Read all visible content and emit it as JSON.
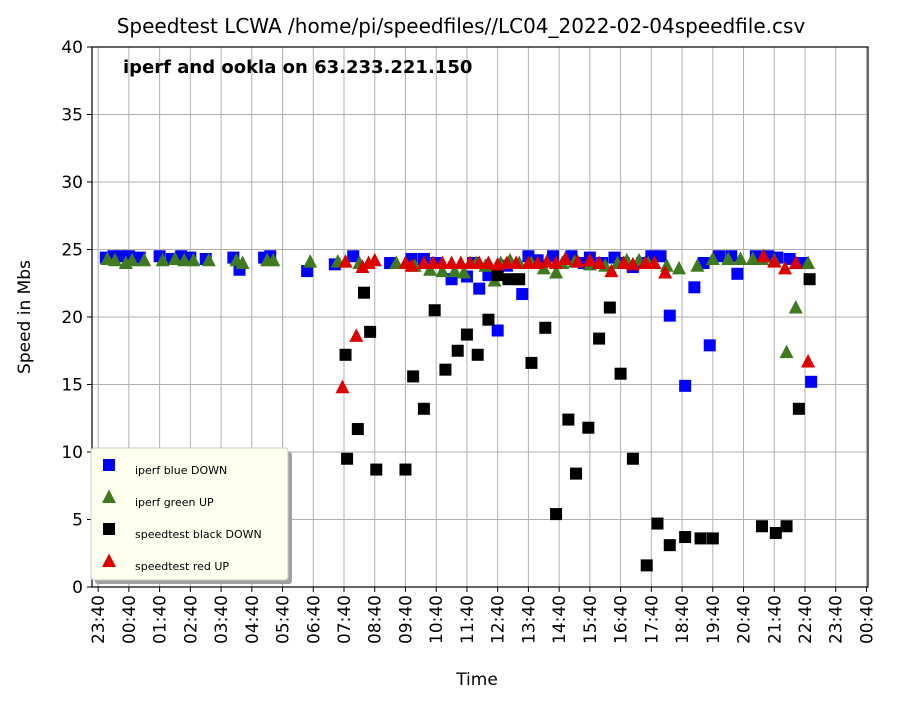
{
  "chart_data": {
    "type": "scatter",
    "title": "Speedtest LCWA /home/pi/speedfiles//LC04_2022-02-04speedfile.csv",
    "subtitle": "iperf and ookla on 63.233.221.150",
    "xlabel": "Time",
    "ylabel": "Speed in Mbs",
    "ylim": [
      0,
      40
    ],
    "yticks": [
      0,
      5,
      10,
      15,
      20,
      25,
      30,
      35,
      40
    ],
    "xlim": [
      -0.2,
      25.05
    ],
    "xtick_labels": [
      "23:40",
      "00:40",
      "01:40",
      "02:40",
      "03:40",
      "04:40",
      "05:40",
      "06:40",
      "07:40",
      "08:40",
      "09:40",
      "10:40",
      "11:40",
      "12:40",
      "13:40",
      "14:40",
      "15:40",
      "16:40",
      "17:40",
      "18:40",
      "19:40",
      "20:40",
      "21:40",
      "22:40",
      "23:40",
      "00:40"
    ],
    "grid": true,
    "legend_position": "lower-left",
    "colors": {
      "blue": "#0000ff",
      "green": "#3e7a1f",
      "black": "#000000",
      "red": "#dd0000"
    },
    "series": [
      {
        "name": "iperf blue DOWN",
        "marker": "square",
        "color": "#0000ff",
        "x": [
          0.25,
          0.5,
          0.75,
          1.0,
          1.35,
          2.0,
          2.4,
          2.7,
          3.0,
          3.5,
          4.4,
          4.6,
          5.4,
          5.6,
          6.8,
          7.7,
          8.3,
          9.5,
          10.2,
          10.6,
          11.0,
          11.5,
          12.0,
          12.2,
          12.4,
          12.7,
          13.0,
          13.3,
          13.8,
          14.0,
          14.3,
          14.8,
          15.4,
          15.8,
          16.0,
          16.4,
          16.8,
          17.1,
          17.4,
          17.7,
          18.0,
          18.3,
          18.6,
          19.1,
          19.4,
          19.7,
          19.9,
          20.2,
          20.6,
          20.8,
          21.4,
          21.8,
          22.1,
          22.5,
          22.9,
          23.2
        ],
        "y": [
          24.4,
          24.5,
          24.5,
          24.5,
          24.4,
          24.5,
          24.3,
          24.5,
          24.4,
          24.3,
          24.4,
          23.5,
          24.4,
          24.5,
          23.4,
          23.9,
          24.5,
          24.0,
          24.3,
          24.3,
          24.0,
          22.8,
          23.0,
          24.0,
          22.1,
          23.1,
          19.0,
          23.8,
          21.7,
          24.5,
          24.2,
          24.5,
          24.5,
          24.0,
          24.4,
          24.0,
          24.4,
          24.0,
          23.7,
          24.0,
          24.5,
          24.5,
          20.1,
          14.9,
          22.2,
          24.0,
          17.9,
          24.5,
          24.5,
          23.2,
          24.5,
          24.5,
          24.4,
          24.3,
          24.0,
          15.2
        ]
      },
      {
        "name": "iperf green UP",
        "marker": "triangle",
        "color": "#3e7a1f",
        "x": [
          0.3,
          0.55,
          0.9,
          1.1,
          1.5,
          2.1,
          2.5,
          2.8,
          3.1,
          3.6,
          4.5,
          4.7,
          5.5,
          5.7,
          6.9,
          7.8,
          8.5,
          9.7,
          10.3,
          10.8,
          11.2,
          11.6,
          11.9,
          12.3,
          12.6,
          12.9,
          13.1,
          13.4,
          13.7,
          14.1,
          14.5,
          14.9,
          15.1,
          15.5,
          16.0,
          16.5,
          16.9,
          17.2,
          17.6,
          17.9,
          18.5,
          18.9,
          19.5,
          20.0,
          20.5,
          20.9,
          21.3,
          21.6,
          22.0,
          22.4,
          22.7,
          23.1
        ],
        "y": [
          24.3,
          24.2,
          24.0,
          24.2,
          24.2,
          24.2,
          24.3,
          24.2,
          24.2,
          24.2,
          24.2,
          24.0,
          24.2,
          24.2,
          24.1,
          24.1,
          24.0,
          24.0,
          23.8,
          23.5,
          23.4,
          23.4,
          23.3,
          24.0,
          23.8,
          22.7,
          24.0,
          24.2,
          24.0,
          24.0,
          23.6,
          23.3,
          24.0,
          24.1,
          23.9,
          23.8,
          24.0,
          24.2,
          24.2,
          24.0,
          23.8,
          23.6,
          23.8,
          24.3,
          24.3,
          24.3,
          24.3,
          24.3,
          24.2,
          17.4,
          20.7,
          24.0
        ]
      },
      {
        "name": "speedtest black DOWN",
        "marker": "square",
        "color": "#000000",
        "x": [
          8.05,
          8.1,
          8.45,
          8.65,
          8.85,
          9.05,
          10.0,
          10.25,
          10.6,
          10.95,
          11.3,
          11.7,
          12.0,
          12.35,
          12.7,
          13.0,
          13.35,
          13.7,
          14.1,
          14.55,
          14.9,
          15.3,
          15.55,
          15.95,
          16.3,
          16.65,
          17.0,
          17.4,
          17.85,
          18.2,
          18.6,
          19.1,
          19.6,
          20.0,
          21.6,
          22.05,
          22.4,
          22.8,
          23.15
        ],
        "y": [
          17.2,
          9.5,
          11.7,
          21.8,
          18.9,
          8.7,
          8.7,
          15.6,
          13.2,
          20.5,
          16.1,
          17.5,
          18.7,
          17.2,
          19.8,
          23.1,
          22.8,
          22.8,
          16.6,
          19.2,
          5.4,
          12.4,
          8.4,
          11.8,
          18.4,
          20.7,
          15.8,
          9.5,
          1.6,
          4.7,
          3.1,
          3.7,
          3.6,
          3.6,
          4.5,
          4.0,
          4.5,
          13.2,
          22.8
        ],
        "legend_label": "speedtest black DOWN"
      },
      {
        "name": "speedtest red UP",
        "marker": "triangle",
        "color": "#dd0000",
        "x": [
          7.95,
          8.05,
          8.4,
          8.6,
          8.8,
          9.0,
          10.0,
          10.2,
          10.6,
          10.9,
          11.2,
          11.5,
          11.8,
          12.1,
          12.4,
          12.7,
          13.0,
          13.3,
          13.6,
          14.0,
          14.3,
          14.6,
          14.9,
          15.2,
          15.6,
          16.0,
          16.3,
          16.7,
          17.1,
          17.4,
          17.8,
          18.1,
          18.45,
          21.65,
          22.0,
          22.35,
          22.7,
          23.1
        ],
        "y": [
          14.8,
          24.1,
          18.6,
          23.7,
          24.0,
          24.2,
          24.0,
          23.8,
          24.0,
          24.0,
          24.0,
          24.0,
          24.0,
          24.0,
          24.0,
          24.0,
          23.9,
          24.0,
          24.0,
          24.0,
          24.0,
          24.1,
          24.0,
          24.3,
          24.1,
          24.2,
          24.0,
          23.4,
          24.0,
          23.9,
          24.0,
          24.0,
          23.3,
          24.5,
          24.1,
          23.6,
          24.0,
          16.7
        ]
      }
    ]
  }
}
